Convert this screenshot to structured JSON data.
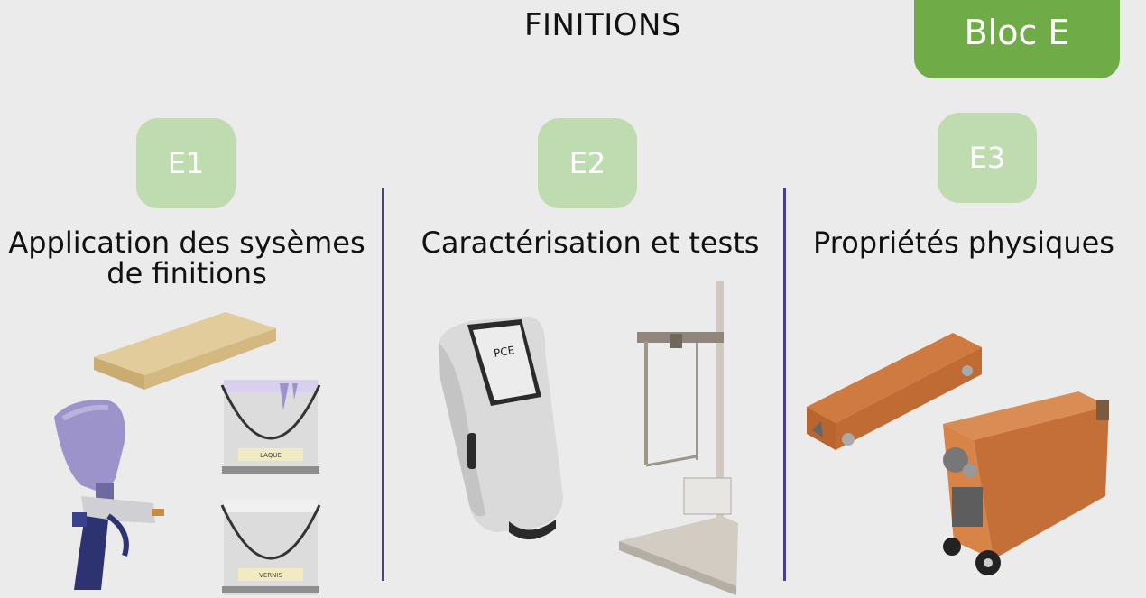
{
  "header": {
    "title": "FINITIONS",
    "bloc_label": "Bloc E"
  },
  "columns": [
    {
      "badge": "E1",
      "heading_line1": "Application des sysèmes",
      "heading_line2": "de finitions"
    },
    {
      "badge": "E2",
      "heading": "Caractérisation et tests"
    },
    {
      "badge": "E3",
      "heading": "Propriétés physiques"
    }
  ],
  "illustrations": {
    "can_top_label": "LAQUE",
    "can_bottom_label": "VERNIS",
    "device_label": "PCE"
  },
  "colors": {
    "background": "#ebebeb",
    "bloc_green": "#6fac47",
    "badge_green": "#bfdcb0",
    "divider": "#4a3f8e",
    "wood": "#d9c08e",
    "spray_purple": "#9b93c9",
    "orange": "#c9743c"
  }
}
